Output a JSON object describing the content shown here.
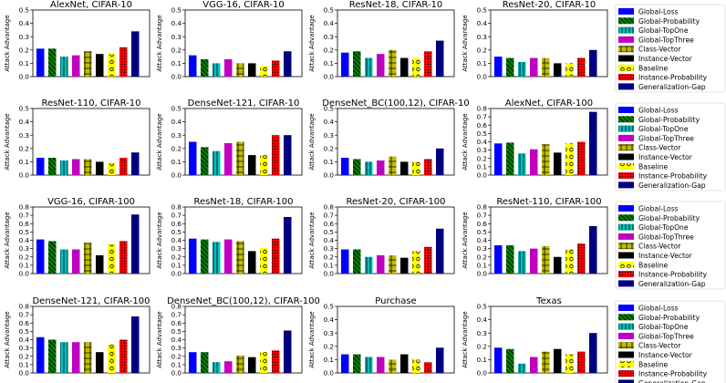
{
  "figure": {
    "ylabel": "Attack Advantage",
    "legend_placement": "right of each row"
  },
  "series": [
    {
      "name": "Global-Loss",
      "color": "#0000ff",
      "pattern": "solid"
    },
    {
      "name": "Global-Probability",
      "color": "#008000",
      "pattern": "backslash"
    },
    {
      "name": "Global-TopOne",
      "color": "#00bfbf",
      "pattern": "vertical"
    },
    {
      "name": "Global-TopThree",
      "color": "#bf00bf",
      "pattern": "solid"
    },
    {
      "name": "Class-Vector",
      "color": "#bfbf00",
      "pattern": "plus"
    },
    {
      "name": "Instance-Vector",
      "color": "#000000",
      "pattern": "solid"
    },
    {
      "name": "Baseline",
      "color": "#ffff00",
      "pattern": "circles"
    },
    {
      "name": "Instance-Probability",
      "color": "#ff0000",
      "pattern": "dots"
    },
    {
      "name": "Generalization-Gap",
      "color": "#00007f",
      "pattern": "solid"
    }
  ],
  "chart_data": [
    {
      "type": "bar",
      "title": "AlexNet, CIFAR-10",
      "ylim": [
        0,
        0.5
      ],
      "yticks": [
        "0.0",
        "0.1",
        "0.2",
        "0.3",
        "0.4",
        "0.5"
      ],
      "values": [
        0.21,
        0.21,
        0.15,
        0.16,
        0.19,
        0.17,
        0.17,
        0.22,
        0.34
      ]
    },
    {
      "type": "bar",
      "title": "VGG-16, CIFAR-10",
      "ylim": [
        0,
        0.5
      ],
      "yticks": [
        "0.0",
        "0.1",
        "0.2",
        "0.3",
        "0.4",
        "0.5"
      ],
      "values": [
        0.16,
        0.13,
        0.1,
        0.13,
        0.1,
        0.1,
        0.08,
        0.12,
        0.19
      ]
    },
    {
      "type": "bar",
      "title": "ResNet-18, CIFAR-10",
      "ylim": [
        0,
        0.5
      ],
      "yticks": [
        "0.0",
        "0.1",
        "0.2",
        "0.3",
        "0.4",
        "0.5"
      ],
      "values": [
        0.18,
        0.19,
        0.14,
        0.17,
        0.2,
        0.14,
        0.14,
        0.19,
        0.27
      ]
    },
    {
      "type": "bar",
      "title": "ResNet-20, CIFAR-10",
      "ylim": [
        0,
        0.5
      ],
      "yticks": [
        "0.0",
        "0.1",
        "0.2",
        "0.3",
        "0.4",
        "0.5"
      ],
      "values": [
        0.15,
        0.14,
        0.11,
        0.14,
        0.14,
        0.1,
        0.1,
        0.14,
        0.2
      ]
    },
    {
      "type": "bar",
      "title": "ResNet-110, CIFAR-10",
      "ylim": [
        0,
        0.5
      ],
      "yticks": [
        "0.0",
        "0.1",
        "0.2",
        "0.3",
        "0.4",
        "0.5"
      ],
      "values": [
        0.13,
        0.13,
        0.11,
        0.12,
        0.12,
        0.1,
        0.09,
        0.13,
        0.17
      ]
    },
    {
      "type": "bar",
      "title": "DenseNet-121, CIFAR-10",
      "ylim": [
        0,
        0.5
      ],
      "yticks": [
        "0.0",
        "0.1",
        "0.2",
        "0.3",
        "0.4",
        "0.5"
      ],
      "values": [
        0.25,
        0.21,
        0.18,
        0.24,
        0.25,
        0.15,
        0.15,
        0.3,
        0.3
      ]
    },
    {
      "type": "bar",
      "title": "DenseNet_BC(100,12), CIFAR-10",
      "ylim": [
        0,
        0.5
      ],
      "yticks": [
        "0.0",
        "0.1",
        "0.2",
        "0.3",
        "0.4",
        "0.5"
      ],
      "values": [
        0.13,
        0.12,
        0.1,
        0.11,
        0.14,
        0.1,
        0.1,
        0.12,
        0.2
      ]
    },
    {
      "type": "bar",
      "title": "AlexNet, CIFAR-100",
      "ylim": [
        0,
        0.8
      ],
      "yticks": [
        "0.0",
        "0.1",
        "0.2",
        "0.3",
        "0.4",
        "0.5",
        "0.6",
        "0.7",
        "0.8"
      ],
      "values": [
        0.38,
        0.39,
        0.26,
        0.31,
        0.37,
        0.27,
        0.38,
        0.4,
        0.76
      ]
    },
    {
      "type": "bar",
      "title": "VGG-16, CIFAR-100",
      "ylim": [
        0,
        0.8
      ],
      "yticks": [
        "0.0",
        "0.1",
        "0.2",
        "0.3",
        "0.4",
        "0.5",
        "0.6",
        "0.7",
        "0.8"
      ],
      "values": [
        0.41,
        0.39,
        0.29,
        0.29,
        0.37,
        0.22,
        0.35,
        0.39,
        0.71
      ]
    },
    {
      "type": "bar",
      "title": "ResNet-18, CIFAR-100",
      "ylim": [
        0,
        0.8
      ],
      "yticks": [
        "0.0",
        "0.1",
        "0.2",
        "0.3",
        "0.4",
        "0.5",
        "0.6",
        "0.7",
        "0.8"
      ],
      "values": [
        0.42,
        0.41,
        0.38,
        0.41,
        0.39,
        0.27,
        0.31,
        0.42,
        0.68
      ]
    },
    {
      "type": "bar",
      "title": "ResNet-20, CIFAR-100",
      "ylim": [
        0,
        0.8
      ],
      "yticks": [
        "0.0",
        "0.1",
        "0.2",
        "0.3",
        "0.4",
        "0.5",
        "0.6",
        "0.7",
        "0.8"
      ],
      "values": [
        0.29,
        0.29,
        0.2,
        0.22,
        0.22,
        0.19,
        0.27,
        0.32,
        0.54
      ]
    },
    {
      "type": "bar",
      "title": "ResNet-110, CIFAR-100",
      "ylim": [
        0,
        0.8
      ],
      "yticks": [
        "0.0",
        "0.1",
        "0.2",
        "0.3",
        "0.4",
        "0.5",
        "0.6",
        "0.7",
        "0.8"
      ],
      "values": [
        0.34,
        0.34,
        0.27,
        0.3,
        0.33,
        0.2,
        0.29,
        0.36,
        0.57
      ]
    },
    {
      "type": "bar",
      "title": "DenseNet-121, CIFAR-100",
      "ylim": [
        0,
        0.8
      ],
      "yticks": [
        "0.0",
        "0.1",
        "0.2",
        "0.3",
        "0.4",
        "0.5",
        "0.6",
        "0.7",
        "0.8"
      ],
      "values": [
        0.43,
        0.4,
        0.37,
        0.37,
        0.37,
        0.25,
        0.34,
        0.4,
        0.68
      ]
    },
    {
      "type": "bar",
      "title": "DenseNet_BC(100,12), CIFAR-100",
      "ylim": [
        0,
        0.8
      ],
      "yticks": [
        "0.0",
        "0.1",
        "0.2",
        "0.3",
        "0.4",
        "0.5",
        "0.6",
        "0.7",
        "0.8"
      ],
      "values": [
        0.25,
        0.25,
        0.13,
        0.14,
        0.21,
        0.19,
        0.25,
        0.27,
        0.51
      ]
    },
    {
      "type": "bar",
      "title": "Purchase",
      "ylim": [
        0,
        0.5
      ],
      "yticks": [
        "0.0",
        "0.1",
        "0.2",
        "0.3",
        "0.4",
        "0.5"
      ],
      "values": [
        0.14,
        0.14,
        0.12,
        0.12,
        0.1,
        0.14,
        0.1,
        0.08,
        0.19
      ]
    },
    {
      "type": "bar",
      "title": "Texas",
      "ylim": [
        0,
        0.5
      ],
      "yticks": [
        "0.0",
        "0.1",
        "0.2",
        "0.3",
        "0.4",
        "0.5"
      ],
      "values": [
        0.19,
        0.18,
        0.07,
        0.12,
        0.16,
        0.18,
        0.14,
        0.16,
        0.3
      ]
    }
  ]
}
